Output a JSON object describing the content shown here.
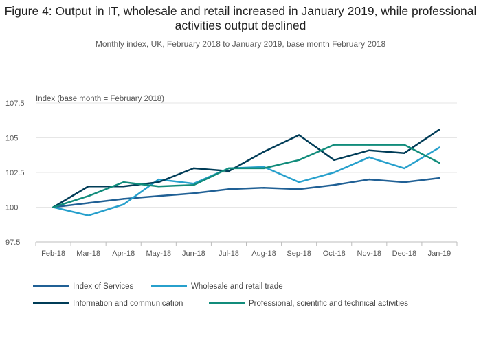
{
  "title": "Figure 4: Output in IT, wholesale and retail increased in January 2019, while professional activities output declined",
  "subtitle": "Monthly index, UK, February 2018 to January 2019, base month February 2018",
  "chart_data": {
    "type": "line",
    "ylabel": "Index (base month = February 2018)",
    "categories": [
      "Feb-18",
      "Mar-18",
      "Apr-18",
      "May-18",
      "Jun-18",
      "Jul-18",
      "Aug-18",
      "Sep-18",
      "Oct-18",
      "Nov-18",
      "Dec-18",
      "Jan-19"
    ],
    "ylim": [
      97.5,
      107.5
    ],
    "yticks": [
      97.5,
      100,
      102.5,
      105,
      107.5
    ],
    "ytick_labels": [
      "97.5",
      "100",
      "102.5",
      "105",
      "107.5"
    ],
    "grid": true,
    "legend_position": "bottom",
    "series": [
      {
        "name": "Index of Services",
        "color": "#206095",
        "values": [
          100,
          100.3,
          100.6,
          100.8,
          101.0,
          101.3,
          101.4,
          101.3,
          101.6,
          102.0,
          101.8,
          102.1
        ]
      },
      {
        "name": "Wholesale and retail trade",
        "color": "#27a0cc",
        "values": [
          100,
          99.4,
          100.2,
          102.0,
          101.7,
          102.8,
          102.9,
          101.8,
          102.5,
          103.6,
          102.8,
          104.3
        ]
      },
      {
        "name": "Information and communication",
        "color": "#003c57",
        "values": [
          100,
          101.5,
          101.5,
          101.8,
          102.8,
          102.6,
          104.0,
          105.2,
          103.4,
          104.1,
          103.9,
          105.6
        ]
      },
      {
        "name": "Professional, scientific and technical activities",
        "color": "#118c7b",
        "values": [
          100,
          100.8,
          101.8,
          101.5,
          101.6,
          102.8,
          102.8,
          103.4,
          104.5,
          104.5,
          104.5,
          103.2
        ]
      }
    ]
  }
}
